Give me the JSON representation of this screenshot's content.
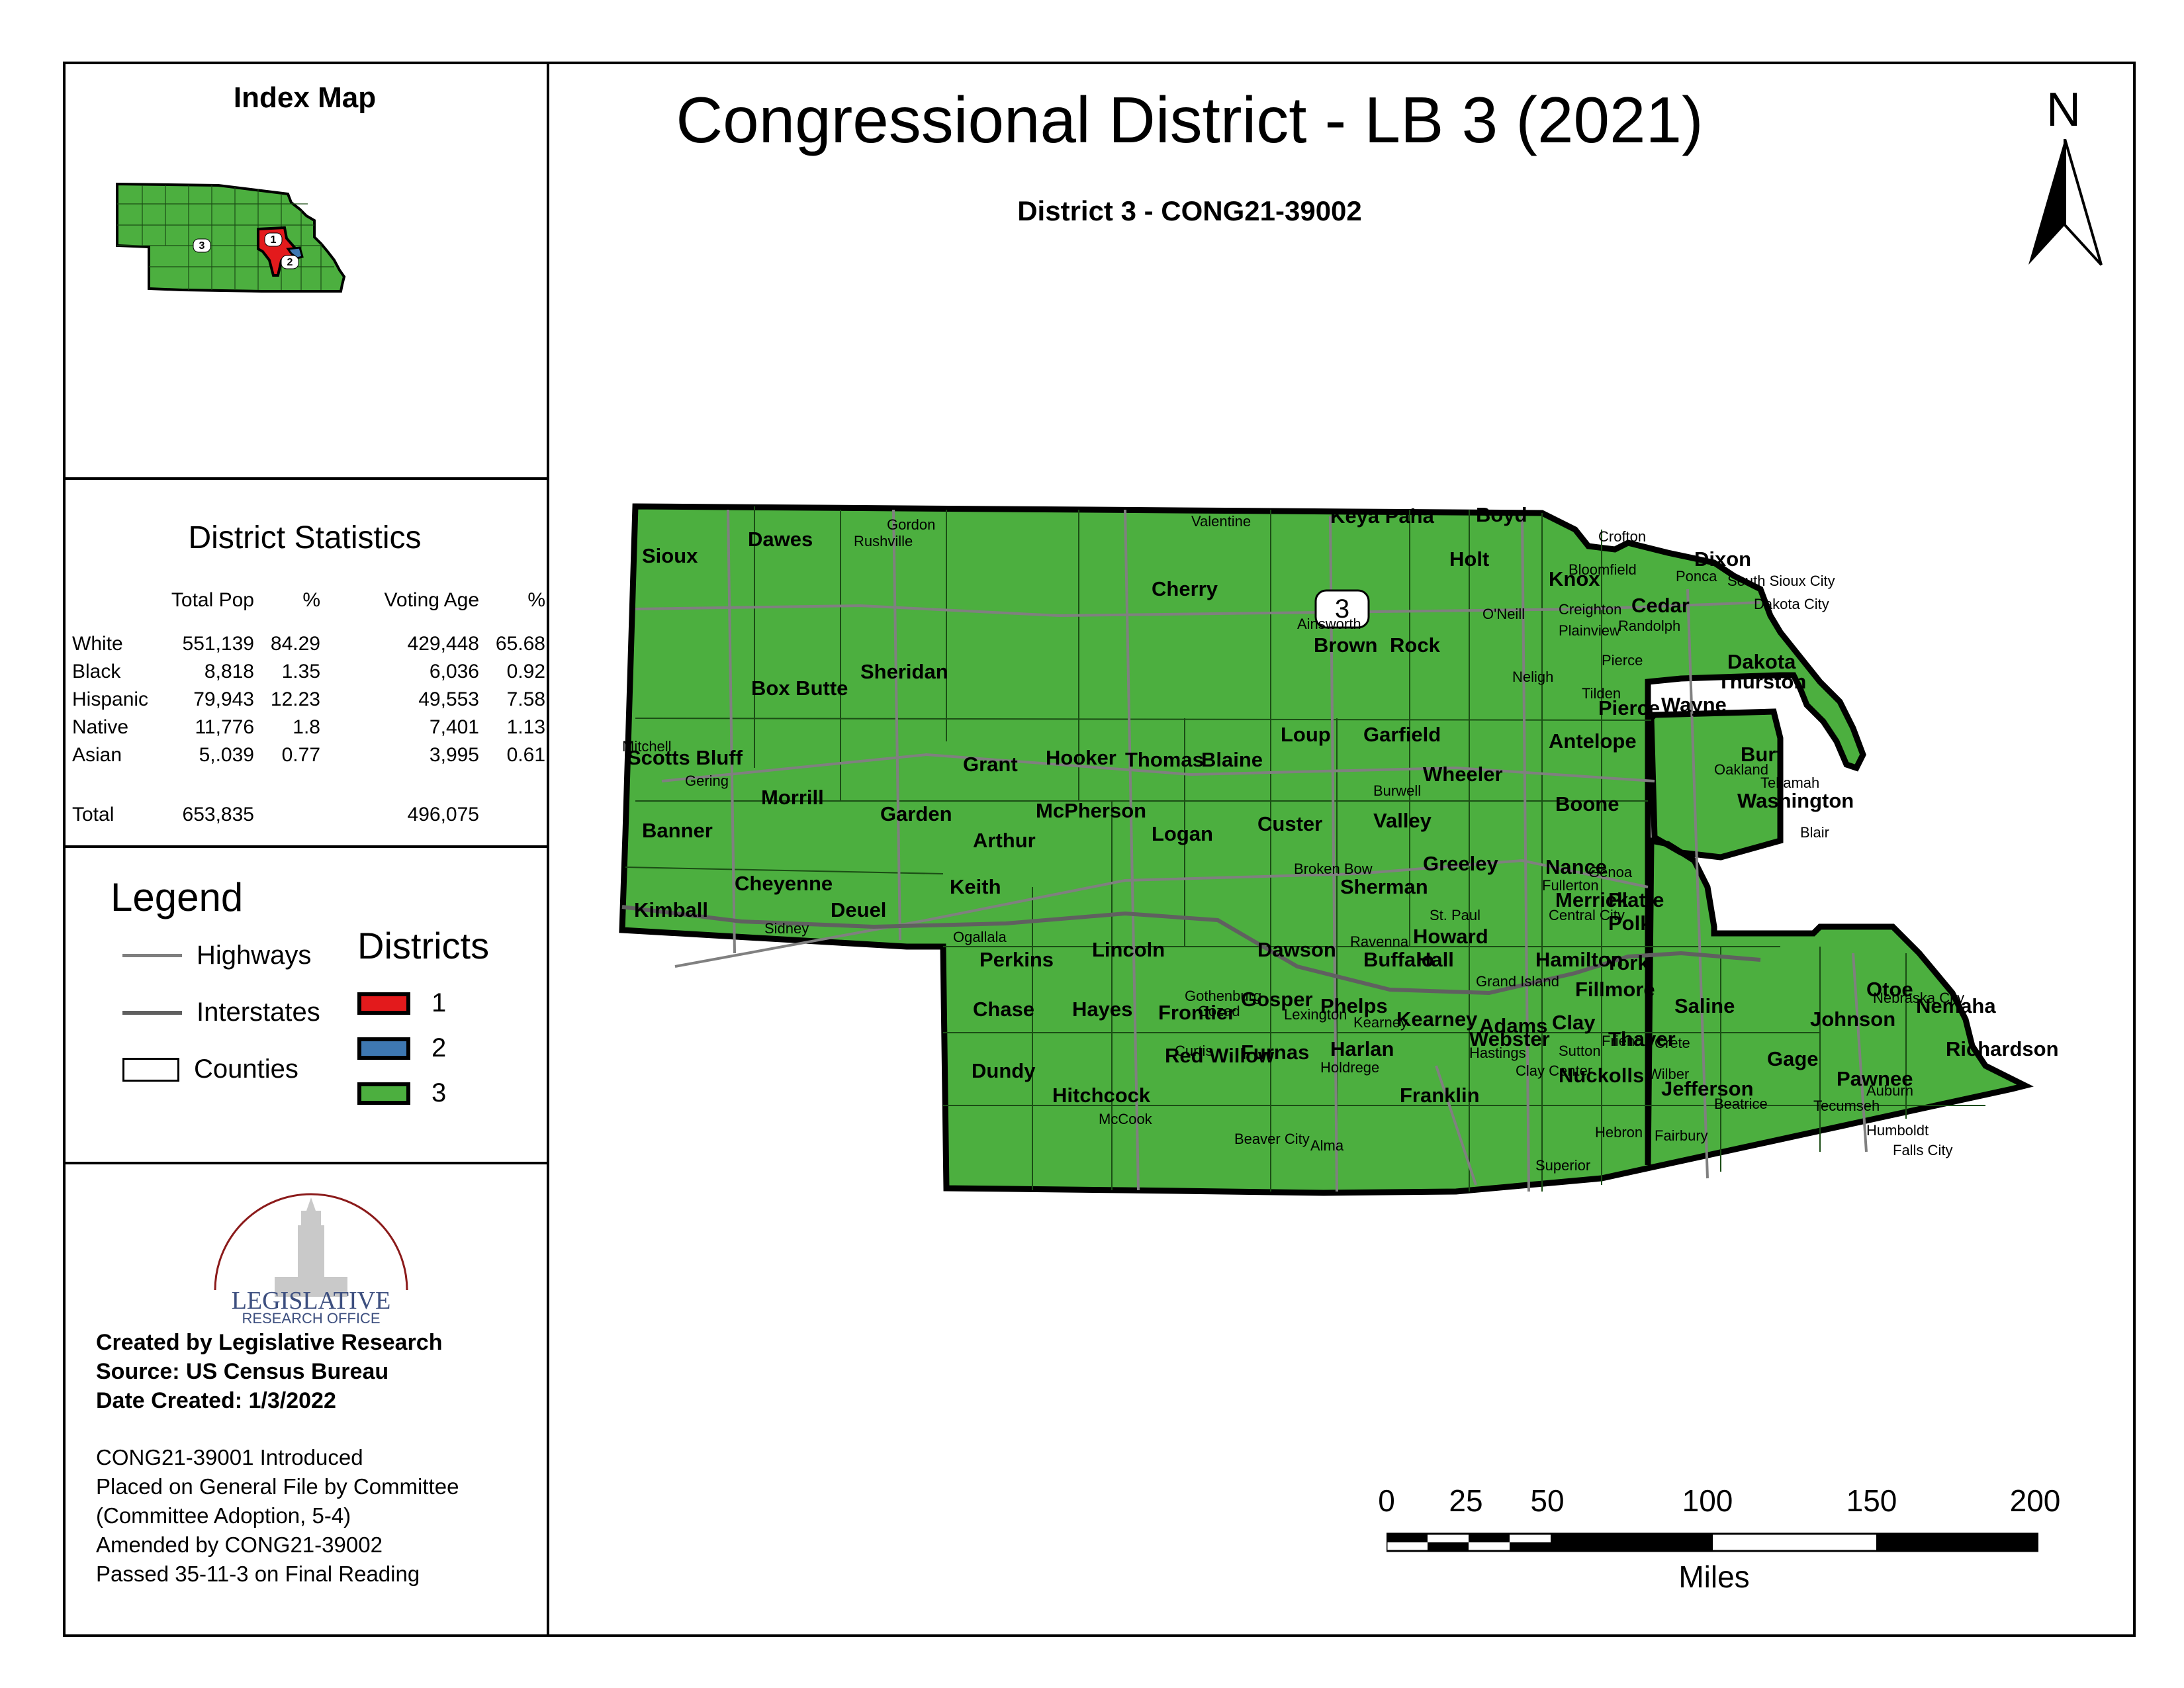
{
  "title": "Congressional District - LB 3 (2021)",
  "subtitle": "District 3 - CONG21-39002",
  "north_label": "N",
  "district_callout": "3",
  "index_map": {
    "title": "Index Map",
    "labels": [
      "1",
      "2",
      "3"
    ]
  },
  "statistics": {
    "title": "District Statistics",
    "columns": [
      "Total Pop",
      "%",
      "Voting Age",
      "%"
    ],
    "rows": [
      {
        "group": "White",
        "total_pop": "551,139",
        "pct_pop": "84.29",
        "voting_age": "429,448",
        "pct_va": "65.68"
      },
      {
        "group": "Black",
        "total_pop": "8,818",
        "pct_pop": "1.35",
        "voting_age": "6,036",
        "pct_va": "0.92"
      },
      {
        "group": "Hispanic",
        "total_pop": "79,943",
        "pct_pop": "12.23",
        "voting_age": "49,553",
        "pct_va": "7.58"
      },
      {
        "group": "Native",
        "total_pop": "11,776",
        "pct_pop": "1.8",
        "voting_age": "7,401",
        "pct_va": "1.13"
      },
      {
        "group": "Asian",
        "total_pop": "5,.039",
        "pct_pop": "0.77",
        "voting_age": "3,995",
        "pct_va": "0.61"
      }
    ],
    "total": {
      "group": "Total",
      "total_pop": "653,835",
      "voting_age": "496,075"
    }
  },
  "legend": {
    "title": "Legend",
    "items": [
      "Highways",
      "Interstates",
      "Counties"
    ],
    "districts_title": "Districts",
    "districts": [
      {
        "label": "1",
        "color": "#e31a1c"
      },
      {
        "label": "2",
        "color": "#3e78b2"
      },
      {
        "label": "3",
        "color": "#4caf3f"
      }
    ]
  },
  "credits": {
    "logo_line1": "LEGISLATIVE",
    "logo_line2": "RESEARCH OFFICE",
    "created_by": "Created by Legislative Research",
    "source": "Source:  US Census Bureau",
    "date": "Date Created: 1/3/2022",
    "history": [
      "CONG21-39001 Introduced",
      "Placed on General File by Committee",
      "(Committee Adoption, 5-4)",
      "Amended by CONG21-39002",
      "Passed 35-11-3 on Final Reading"
    ]
  },
  "scale_bar": {
    "ticks": [
      "0",
      "25",
      "50",
      "100",
      "150",
      "200"
    ],
    "units": "Miles"
  },
  "colors": {
    "district_fill": "#4caf3f",
    "road": "#7f7f7f",
    "border": "#000000"
  },
  "counties": [
    "Sioux",
    "Dawes",
    "Sheridan",
    "Cherry",
    "Keya Paha",
    "Boyd",
    "Knox",
    "Cedar",
    "Dixon",
    "Dakota",
    "Thurston",
    "Holt",
    "Brown",
    "Rock",
    "Antelope",
    "Pierce",
    "Wayne",
    "Burt",
    "Washington",
    "Scotts Bluff",
    "Box Butte",
    "Morrill",
    "Garden",
    "Grant",
    "Hooker",
    "Thomas",
    "Blaine",
    "Loup",
    "Garfield",
    "Wheeler",
    "Boone",
    "Banner",
    "Kimball",
    "Cheyenne",
    "Deuel",
    "Keith",
    "Arthur",
    "McPherson",
    "Logan",
    "Custer",
    "Valley",
    "Greeley",
    "Nance",
    "Merrick",
    "Platte",
    "Polk",
    "Sherman",
    "Howard",
    "Hall",
    "Hamilton",
    "York",
    "Perkins",
    "Lincoln",
    "Dawson",
    "Buffalo",
    "Chase",
    "Hayes",
    "Frontier",
    "Gosper",
    "Phelps",
    "Kearney",
    "Adams",
    "Clay",
    "Fillmore",
    "Saline",
    "Dundy",
    "Hitchcock",
    "Red Willow",
    "Furnas",
    "Harlan",
    "Franklin",
    "Webster",
    "Nuckolls",
    "Thayer",
    "Jefferson",
    "Gage",
    "Johnson",
    "Otoe",
    "Nemaha",
    "Pawnee",
    "Richardson"
  ],
  "towns": [
    "Gordon",
    "Rushville",
    "Valentine",
    "Ainsworth",
    "O'Neill",
    "Crofton",
    "Bloomfield",
    "Creighton",
    "Plainview",
    "Randolph",
    "Ponca",
    "South Sioux City",
    "Dakota City",
    "Neligh",
    "Tilden",
    "Pierce",
    "Oakland",
    "Tekamah",
    "Blair",
    "Mitchell",
    "Gering",
    "Sidney",
    "Ogallala",
    "Broken Bow",
    "Burwell",
    "Fullerton",
    "Genoa",
    "Central City",
    "St. Paul",
    "Ravenna",
    "Grand Island",
    "Gothenburg",
    "Cozad",
    "Lexington",
    "Kearney",
    "Curtis",
    "Holdrege",
    "Hastings",
    "Clay Center",
    "Sutton",
    "Friend",
    "Crete",
    "Wilber",
    "Beatrice",
    "Tecumseh",
    "Auburn",
    "Nebraska City",
    "Humboldt",
    "Falls City",
    "McCook",
    "Beaver City",
    "Alma",
    "Superior",
    "Hebron",
    "Fairbury"
  ]
}
